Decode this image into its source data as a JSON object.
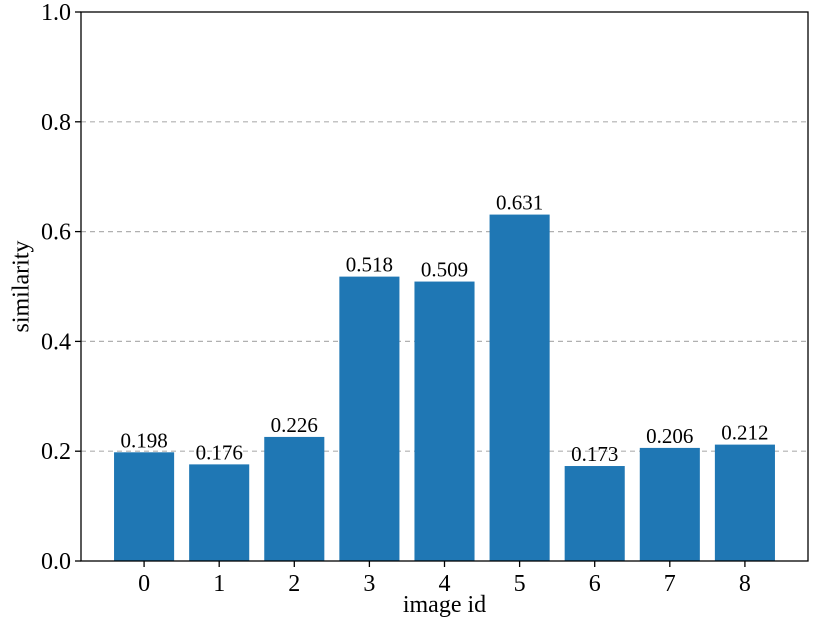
{
  "chart_data": {
    "type": "bar",
    "categories": [
      "0",
      "1",
      "2",
      "3",
      "4",
      "5",
      "6",
      "7",
      "8"
    ],
    "values": [
      0.198,
      0.176,
      0.226,
      0.518,
      0.509,
      0.631,
      0.173,
      0.206,
      0.212
    ],
    "data_labels": [
      "0.198",
      "0.176",
      "0.226",
      "0.518",
      "0.509",
      "0.631",
      "0.173",
      "0.206",
      "0.212"
    ],
    "title": "",
    "xlabel": "image id",
    "ylabel": "similarity",
    "ylim": [
      0,
      1.0
    ],
    "yticks": [
      "0.0",
      "0.2",
      "0.4",
      "0.6",
      "0.8",
      "1.0"
    ],
    "grid": "y-axis dashed",
    "bar_color": "#1f77b4",
    "grid_color": "#b0b0b0"
  }
}
